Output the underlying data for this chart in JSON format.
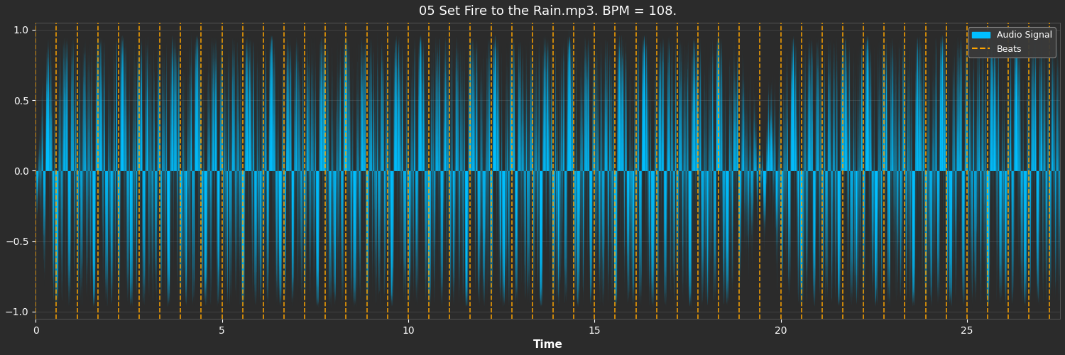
{
  "title": "05 Set Fire to the Rain.mp3. BPM = 108.",
  "xlabel": "Time",
  "ylabel": "",
  "background_color": "#2b2b2b",
  "axes_background_color": "#2b2b2b",
  "audio_color": "#00bfff",
  "beat_color": "#ffa500",
  "ylim": [
    -1.05,
    1.05
  ],
  "xlim": [
    0,
    27.5
  ],
  "xticks": [
    0,
    5,
    10,
    15,
    20,
    25
  ],
  "yticks": [
    -1.0,
    -0.5,
    0.0,
    0.5,
    1.0
  ],
  "title_color": "white",
  "tick_color": "white",
  "label_color": "white",
  "grid_color": "#555555",
  "bpm": 108,
  "duration": 27.5,
  "legend_facecolor": "#3a3a3a",
  "legend_edgecolor": "#888888",
  "title_fontsize": 13,
  "tick_fontsize": 10,
  "label_fontsize": 11
}
